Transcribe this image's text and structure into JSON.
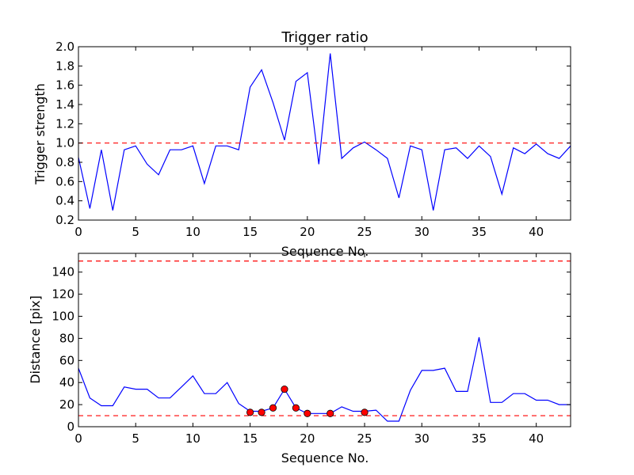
{
  "chart_data": [
    {
      "type": "line",
      "title": "Trigger ratio",
      "xlabel": "Sequence No.",
      "ylabel": "Trigger strength",
      "xlim": [
        0,
        43
      ],
      "ylim": [
        0.2,
        2.0
      ],
      "xticks": [
        0,
        5,
        10,
        15,
        20,
        25,
        30,
        35,
        40
      ],
      "yticks": [
        0.2,
        0.4,
        0.6,
        0.8,
        1.0,
        1.2,
        1.4,
        1.6,
        1.8,
        2.0
      ],
      "grid": false,
      "series": [
        {
          "color": "#0000ff",
          "x": [
            0,
            1,
            2,
            3,
            4,
            5,
            6,
            7,
            8,
            9,
            10,
            11,
            12,
            13,
            14,
            15,
            16,
            17,
            18,
            19,
            20,
            21,
            22,
            23,
            24,
            25,
            26,
            27,
            28,
            29,
            30,
            31,
            32,
            33,
            34,
            35,
            36,
            37,
            38,
            39,
            40,
            41,
            42,
            43
          ],
          "y": [
            0.85,
            0.32,
            0.93,
            0.3,
            0.93,
            0.97,
            0.78,
            0.67,
            0.93,
            0.93,
            0.97,
            0.58,
            0.97,
            0.97,
            0.93,
            1.58,
            1.76,
            1.42,
            1.03,
            1.64,
            1.73,
            0.78,
            1.93,
            0.84,
            0.95,
            1.01,
            0.93,
            0.84,
            0.43,
            0.97,
            0.93,
            0.3,
            0.93,
            0.95,
            0.84,
            0.97,
            0.86,
            0.47,
            0.95,
            0.89,
            0.99,
            0.89,
            0.84,
            0.97
          ]
        }
      ],
      "hlines": [
        {
          "y": 1.0,
          "color": "#ff0000",
          "style": "dashed"
        }
      ]
    },
    {
      "type": "line",
      "title": "",
      "xlabel": "Sequence No.",
      "ylabel": "Distance [pix]",
      "xlim": [
        0,
        43
      ],
      "ylim": [
        0,
        157
      ],
      "xticks": [
        0,
        5,
        10,
        15,
        20,
        25,
        30,
        35,
        40
      ],
      "yticks": [
        0,
        20,
        40,
        60,
        80,
        100,
        120,
        140
      ],
      "grid": false,
      "series": [
        {
          "color": "#0000ff",
          "x": [
            0,
            1,
            2,
            3,
            4,
            5,
            6,
            7,
            8,
            9,
            10,
            11,
            12,
            13,
            14,
            15,
            16,
            17,
            18,
            19,
            20,
            21,
            22,
            23,
            24,
            25,
            26,
            27,
            28,
            29,
            30,
            31,
            32,
            33,
            34,
            35,
            36,
            37,
            38,
            39,
            40,
            41,
            42,
            43
          ],
          "y": [
            53,
            26,
            19,
            19,
            36,
            34,
            34,
            26,
            26,
            36,
            46,
            30,
            30,
            40,
            21,
            14,
            14,
            17,
            34,
            17,
            12,
            12,
            12,
            18,
            14,
            14,
            15,
            5,
            5,
            33,
            51,
            51,
            53,
            32,
            32,
            81,
            22,
            22,
            30,
            30,
            24,
            24,
            20,
            20
          ]
        }
      ],
      "markers": {
        "color": "#ff0000",
        "x": [
          15,
          16,
          17,
          18,
          19,
          20,
          22,
          25
        ],
        "y": [
          13,
          13,
          17,
          34,
          17,
          12,
          12,
          13
        ]
      },
      "hlines": [
        {
          "y": 150,
          "color": "#ff0000",
          "style": "dashed"
        },
        {
          "y": 10,
          "color": "#ff0000",
          "style": "dashed"
        }
      ]
    }
  ]
}
